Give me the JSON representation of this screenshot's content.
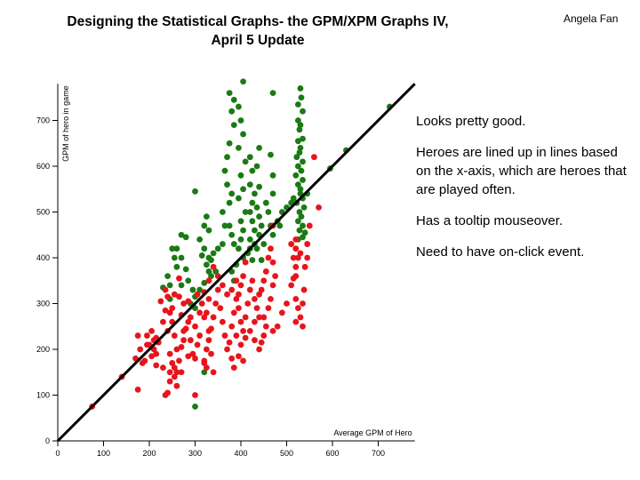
{
  "slide": {
    "title_line1": "Designing the Statistical Graphs- the GPM/XPM Graphs IV,",
    "title_line2": "April 5 Update",
    "author": "Angela Fan",
    "notes": [
      "Looks pretty good.",
      "Heroes are lined up in lines based on the x-axis, which are heroes that are played often.",
      "Has a tooltip mouseover.",
      "Need to have on-click event."
    ]
  },
  "colors": {
    "above": "#1a7a14",
    "below": "#e8141c",
    "diagonal": "#000000"
  },
  "chart_data": {
    "type": "scatter",
    "xlabel": "Average GPM of Hero",
    "ylabel": "GPM of hero in game",
    "xlim": [
      0,
      780
    ],
    "ylim": [
      0,
      780
    ],
    "x_ticks": [
      "0",
      "100",
      "200",
      "300",
      "400",
      "500",
      "600",
      "700"
    ],
    "y_ticks": [
      "0",
      "100",
      "200",
      "300",
      "400",
      "500",
      "600",
      "700"
    ],
    "reference_line": "y = x",
    "series": [
      {
        "color_key": "above",
        "points": [
          [
            300,
            75
          ],
          [
            320,
            150
          ],
          [
            300,
            290
          ],
          [
            295,
            330
          ],
          [
            250,
            420
          ],
          [
            255,
            400
          ],
          [
            260,
            380
          ],
          [
            245,
            340
          ],
          [
            240,
            360
          ],
          [
            230,
            335
          ],
          [
            245,
            310
          ],
          [
            300,
            545
          ],
          [
            325,
            490
          ],
          [
            320,
            470
          ],
          [
            330,
            460
          ],
          [
            310,
            440
          ],
          [
            320,
            420
          ],
          [
            315,
            405
          ],
          [
            330,
            400
          ],
          [
            325,
            385
          ],
          [
            330,
            370
          ],
          [
            335,
            360
          ],
          [
            320,
            345
          ],
          [
            310,
            330
          ],
          [
            300,
            315
          ],
          [
            290,
            300
          ],
          [
            280,
            375
          ],
          [
            285,
            350
          ],
          [
            270,
            340
          ],
          [
            340,
            410
          ],
          [
            335,
            395
          ],
          [
            345,
            370
          ],
          [
            350,
            420
          ],
          [
            360,
            430
          ],
          [
            365,
            470
          ],
          [
            360,
            500
          ],
          [
            375,
            520
          ],
          [
            380,
            540
          ],
          [
            370,
            560
          ],
          [
            365,
            590
          ],
          [
            370,
            620
          ],
          [
            375,
            650
          ],
          [
            385,
            690
          ],
          [
            380,
            720
          ],
          [
            385,
            745
          ],
          [
            375,
            760
          ],
          [
            405,
            785
          ],
          [
            395,
            730
          ],
          [
            400,
            700
          ],
          [
            405,
            670
          ],
          [
            395,
            640
          ],
          [
            410,
            610
          ],
          [
            400,
            580
          ],
          [
            405,
            550
          ],
          [
            395,
            530
          ],
          [
            410,
            500
          ],
          [
            400,
            480
          ],
          [
            405,
            460
          ],
          [
            400,
            440
          ],
          [
            395,
            420
          ],
          [
            405,
            400
          ],
          [
            390,
            385
          ],
          [
            380,
            370
          ],
          [
            385,
            350
          ],
          [
            375,
            470
          ],
          [
            380,
            450
          ],
          [
            385,
            430
          ],
          [
            420,
            620
          ],
          [
            425,
            590
          ],
          [
            420,
            560
          ],
          [
            430,
            540
          ],
          [
            425,
            520
          ],
          [
            420,
            500
          ],
          [
            425,
            480
          ],
          [
            430,
            460
          ],
          [
            420,
            440
          ],
          [
            435,
            420
          ],
          [
            425,
            395
          ],
          [
            440,
            640
          ],
          [
            435,
            600
          ],
          [
            440,
            555
          ],
          [
            435,
            510
          ],
          [
            440,
            490
          ],
          [
            445,
            470
          ],
          [
            440,
            450
          ],
          [
            450,
            430
          ],
          [
            445,
            395
          ],
          [
            455,
            520
          ],
          [
            460,
            500
          ],
          [
            465,
            470
          ],
          [
            465,
            625
          ],
          [
            470,
            760
          ],
          [
            470,
            580
          ],
          [
            470,
            540
          ],
          [
            470,
            450
          ],
          [
            525,
            735
          ],
          [
            525,
            700
          ],
          [
            528,
            680
          ],
          [
            525,
            655
          ],
          [
            528,
            630
          ],
          [
            522,
            620
          ],
          [
            525,
            600
          ],
          [
            520,
            580
          ],
          [
            525,
            560
          ],
          [
            530,
            540
          ],
          [
            522,
            520
          ],
          [
            528,
            500
          ],
          [
            525,
            480
          ],
          [
            528,
            460
          ],
          [
            525,
            440
          ],
          [
            530,
            770
          ],
          [
            532,
            750
          ],
          [
            535,
            720
          ],
          [
            530,
            690
          ],
          [
            535,
            660
          ],
          [
            530,
            640
          ],
          [
            535,
            610
          ],
          [
            532,
            590
          ],
          [
            535,
            570
          ],
          [
            530,
            550
          ],
          [
            535,
            530
          ],
          [
            538,
            510
          ],
          [
            532,
            490
          ],
          [
            535,
            470
          ],
          [
            535,
            445
          ],
          [
            540,
            455
          ],
          [
            490,
            500
          ],
          [
            500,
            510
          ],
          [
            510,
            520
          ],
          [
            515,
            530
          ],
          [
            545,
            540
          ],
          [
            630,
            635
          ],
          [
            725,
            730
          ],
          [
            595,
            595
          ],
          [
            430,
            430
          ],
          [
            420,
            420
          ],
          [
            415,
            410
          ],
          [
            480,
            480
          ],
          [
            485,
            470
          ],
          [
            280,
            445
          ],
          [
            270,
            450
          ],
          [
            260,
            420
          ],
          [
            270,
            400
          ]
        ]
      },
      {
        "color_key": "below",
        "points": [
          [
            75,
            75
          ],
          [
            140,
            140
          ],
          [
            175,
            112
          ],
          [
            170,
            180
          ],
          [
            175,
            230
          ],
          [
            180,
            200
          ],
          [
            185,
            170
          ],
          [
            190,
            175
          ],
          [
            195,
            230
          ],
          [
            200,
            210
          ],
          [
            205,
            185
          ],
          [
            210,
            220
          ],
          [
            215,
            165
          ],
          [
            210,
            200
          ],
          [
            215,
            225
          ],
          [
            220,
            215
          ],
          [
            230,
            160
          ],
          [
            235,
            100
          ],
          [
            240,
            105
          ],
          [
            245,
            150
          ],
          [
            250,
            170
          ],
          [
            245,
            190
          ],
          [
            240,
            240
          ],
          [
            250,
            260
          ],
          [
            255,
            230
          ],
          [
            260,
            200
          ],
          [
            255,
            160
          ],
          [
            260,
            150
          ],
          [
            265,
            175
          ],
          [
            270,
            205
          ],
          [
            275,
            220
          ],
          [
            280,
            245
          ],
          [
            285,
            260
          ],
          [
            290,
            220
          ],
          [
            295,
            190
          ],
          [
            300,
            180
          ],
          [
            305,
            210
          ],
          [
            300,
            250
          ],
          [
            310,
            280
          ],
          [
            320,
            270
          ],
          [
            315,
            300
          ],
          [
            305,
            320
          ],
          [
            320,
            325
          ],
          [
            330,
            310
          ],
          [
            325,
            280
          ],
          [
            335,
            245
          ],
          [
            330,
            220
          ],
          [
            325,
            200
          ],
          [
            320,
            170
          ],
          [
            325,
            160
          ],
          [
            330,
            240
          ],
          [
            340,
            270
          ],
          [
            345,
            300
          ],
          [
            350,
            330
          ],
          [
            355,
            290
          ],
          [
            360,
            260
          ],
          [
            365,
            230
          ],
          [
            370,
            200
          ],
          [
            375,
            215
          ],
          [
            380,
            250
          ],
          [
            385,
            280
          ],
          [
            390,
            310
          ],
          [
            395,
            290
          ],
          [
            400,
            260
          ],
          [
            405,
            240
          ],
          [
            400,
            210
          ],
          [
            395,
            185
          ],
          [
            405,
            175
          ],
          [
            410,
            270
          ],
          [
            415,
            300
          ],
          [
            420,
            330
          ],
          [
            425,
            350
          ],
          [
            430,
            310
          ],
          [
            435,
            290
          ],
          [
            440,
            270
          ],
          [
            445,
            330
          ],
          [
            450,
            350
          ],
          [
            455,
            370
          ],
          [
            460,
            400
          ],
          [
            465,
            420
          ],
          [
            470,
            390
          ],
          [
            475,
            360
          ],
          [
            470,
            340
          ],
          [
            465,
            310
          ],
          [
            460,
            290
          ],
          [
            455,
            250
          ],
          [
            450,
            230
          ],
          [
            445,
            215
          ],
          [
            440,
            200
          ],
          [
            430,
            220
          ],
          [
            420,
            240
          ],
          [
            410,
            390
          ],
          [
            405,
            360
          ],
          [
            400,
            340
          ],
          [
            395,
            320
          ],
          [
            390,
            350
          ],
          [
            380,
            330
          ],
          [
            370,
            320
          ],
          [
            360,
            340
          ],
          [
            350,
            360
          ],
          [
            340,
            380
          ],
          [
            330,
            350
          ],
          [
            510,
            340
          ],
          [
            515,
            355
          ],
          [
            520,
            380
          ],
          [
            515,
            400
          ],
          [
            520,
            420
          ],
          [
            525,
            400
          ],
          [
            520,
            360
          ],
          [
            525,
            290
          ],
          [
            520,
            310
          ],
          [
            530,
            270
          ],
          [
            535,
            250
          ],
          [
            535,
            300
          ],
          [
            538,
            330
          ],
          [
            540,
            380
          ],
          [
            530,
            410
          ],
          [
            545,
            430
          ],
          [
            545,
            400
          ],
          [
            550,
            470
          ],
          [
            560,
            620
          ],
          [
            570,
            510
          ],
          [
            520,
            440
          ],
          [
            510,
            430
          ],
          [
            470,
            470
          ],
          [
            300,
            100
          ],
          [
            310,
            230
          ],
          [
            290,
            270
          ],
          [
            285,
            305
          ],
          [
            275,
            300
          ],
          [
            265,
            315
          ],
          [
            255,
            320
          ],
          [
            250,
            290
          ],
          [
            245,
            280
          ],
          [
            235,
            285
          ],
          [
            225,
            305
          ],
          [
            235,
            330
          ],
          [
            240,
            315
          ],
          [
            265,
            355
          ],
          [
            270,
            275
          ],
          [
            275,
            240
          ],
          [
            285,
            185
          ],
          [
            270,
            150
          ],
          [
            255,
            140
          ],
          [
            245,
            130
          ],
          [
            260,
            120
          ],
          [
            380,
            180
          ],
          [
            385,
            160
          ],
          [
            390,
            230
          ],
          [
            410,
            225
          ],
          [
            430,
            260
          ],
          [
            440,
            320
          ],
          [
            450,
            270
          ],
          [
            470,
            240
          ],
          [
            480,
            250
          ],
          [
            490,
            280
          ],
          [
            500,
            300
          ],
          [
            520,
            260
          ],
          [
            340,
            150
          ],
          [
            320,
            175
          ],
          [
            215,
            190
          ],
          [
            205,
            240
          ],
          [
            195,
            210
          ],
          [
            230,
            260
          ],
          [
            335,
            190
          ]
        ]
      }
    ]
  }
}
